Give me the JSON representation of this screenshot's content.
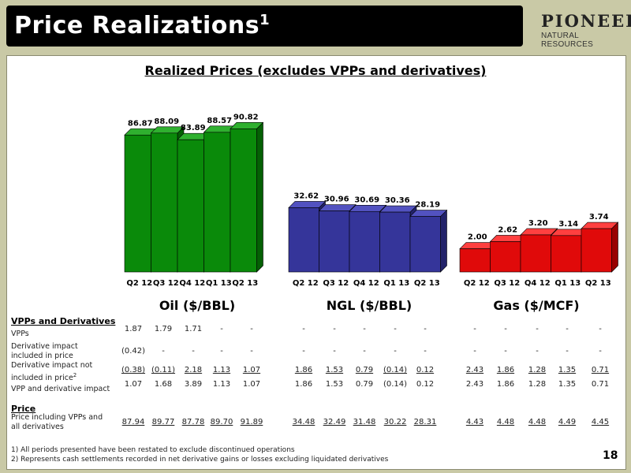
{
  "header": {
    "title": "Price Realizations",
    "title_sup": "1",
    "logo_line1": "PIONEER",
    "logo_line2": "NATURAL RESOURCES"
  },
  "chart_title": "Realized Prices (excludes VPPs and derivatives)",
  "colors": {
    "oil": "#0a8a0a",
    "ngl": "#35359a",
    "gas": "#e00a0a"
  },
  "chart_data": [
    {
      "type": "bar",
      "title": "Oil ($/BBL)",
      "categories": [
        "Q2 12",
        "Q3 12",
        "Q4 12",
        "Q1 13",
        "Q2 13"
      ],
      "values": [
        86.87,
        88.09,
        83.89,
        88.57,
        90.82
      ],
      "labels": [
        "86.87",
        "88.09",
        "83.89",
        "88.57",
        "90.82"
      ]
    },
    {
      "type": "bar",
      "title": "NGL ($/BBL)",
      "categories": [
        "Q2 12",
        "Q3 12",
        "Q4 12",
        "Q1 13",
        "Q2 13"
      ],
      "values": [
        32.62,
        30.96,
        30.69,
        30.36,
        28.19
      ],
      "labels": [
        "32.62",
        "30.96",
        "30.69",
        "30.36",
        "28.19"
      ]
    },
    {
      "type": "bar",
      "title": "Gas ($/MCF)",
      "categories": [
        "Q2 12",
        "Q3 12",
        "Q4 12",
        "Q1 13",
        "Q2 13"
      ],
      "values": [
        2.0,
        2.62,
        3.2,
        3.14,
        3.74
      ],
      "labels": [
        "2.00",
        "2.62",
        "3.20",
        "3.14",
        "3.74"
      ]
    }
  ],
  "table": {
    "section1": "VPPs and Derivatives",
    "section2": "Price",
    "rows": [
      {
        "label": "VPPs",
        "underline": false,
        "values": [
          "1.87",
          "1.79",
          "1.71",
          "-",
          "-",
          "-",
          "-",
          "-",
          "-",
          "-",
          "-",
          "-",
          "-",
          "-",
          "-"
        ]
      },
      {
        "label": "Derivative impact included in price",
        "underline": false,
        "values": [
          "(0.42)",
          "-",
          "-",
          "-",
          "-",
          "-",
          "-",
          "-",
          "-",
          "-",
          "-",
          "-",
          "-",
          "-",
          "-"
        ]
      },
      {
        "label": "Derivative impact not included in price",
        "label_sup": "2",
        "underline": true,
        "values": [
          "(0.38)",
          "(0.11)",
          "2.18",
          "1.13",
          "1.07",
          "1.86",
          "1.53",
          "0.79",
          "(0.14)",
          "0.12",
          "2.43",
          "1.86",
          "1.28",
          "1.35",
          "0.71"
        ]
      },
      {
        "label": "VPP and derivative impact",
        "underline": false,
        "values": [
          "1.07",
          "1.68",
          "3.89",
          "1.13",
          "1.07",
          "1.86",
          "1.53",
          "0.79",
          "(0.14)",
          "0.12",
          "2.43",
          "1.86",
          "1.28",
          "1.35",
          "0.71"
        ]
      },
      {
        "label": "Price including VPPs and all derivatives",
        "underline": true,
        "values": [
          "87.94",
          "89.77",
          "87.78",
          "89.70",
          "91.89",
          "34.48",
          "32.49",
          "31.48",
          "30.22",
          "28.31",
          "4.43",
          "4.48",
          "4.48",
          "4.49",
          "4.45"
        ]
      }
    ]
  },
  "footnotes": [
    "1) All periods presented have been restated to exclude discontinued operations",
    "2) Represents cash settlements recorded in net derivative gains or losses excluding liquidated derivatives"
  ],
  "page_number": "18"
}
